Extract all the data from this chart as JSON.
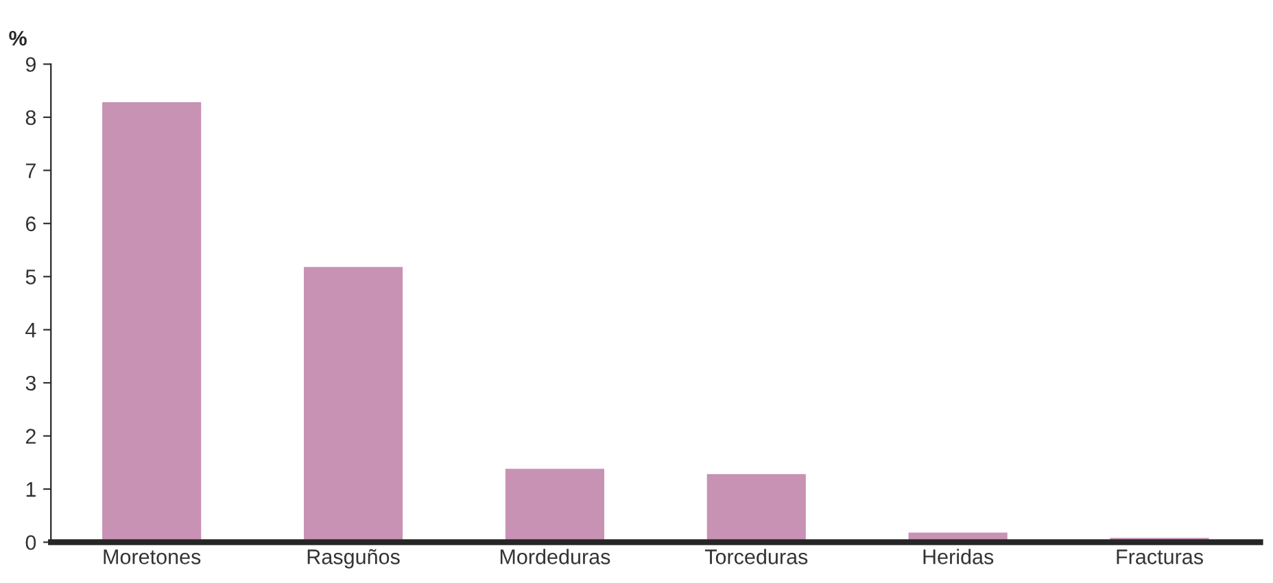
{
  "chart_data": {
    "type": "bar",
    "ylabel": "%",
    "categories": [
      "Moretones",
      "Rasguños",
      "Mordeduras",
      "Torceduras",
      "Heridas",
      "Fracturas"
    ],
    "values": [
      8.3,
      5.2,
      1.4,
      1.3,
      0.2,
      0.1
    ],
    "color": "#c792b4",
    "ylim": [
      0,
      9
    ],
    "yticks": [
      0,
      1,
      2,
      3,
      4,
      5,
      6,
      7,
      8,
      9
    ],
    "grid": false
  }
}
